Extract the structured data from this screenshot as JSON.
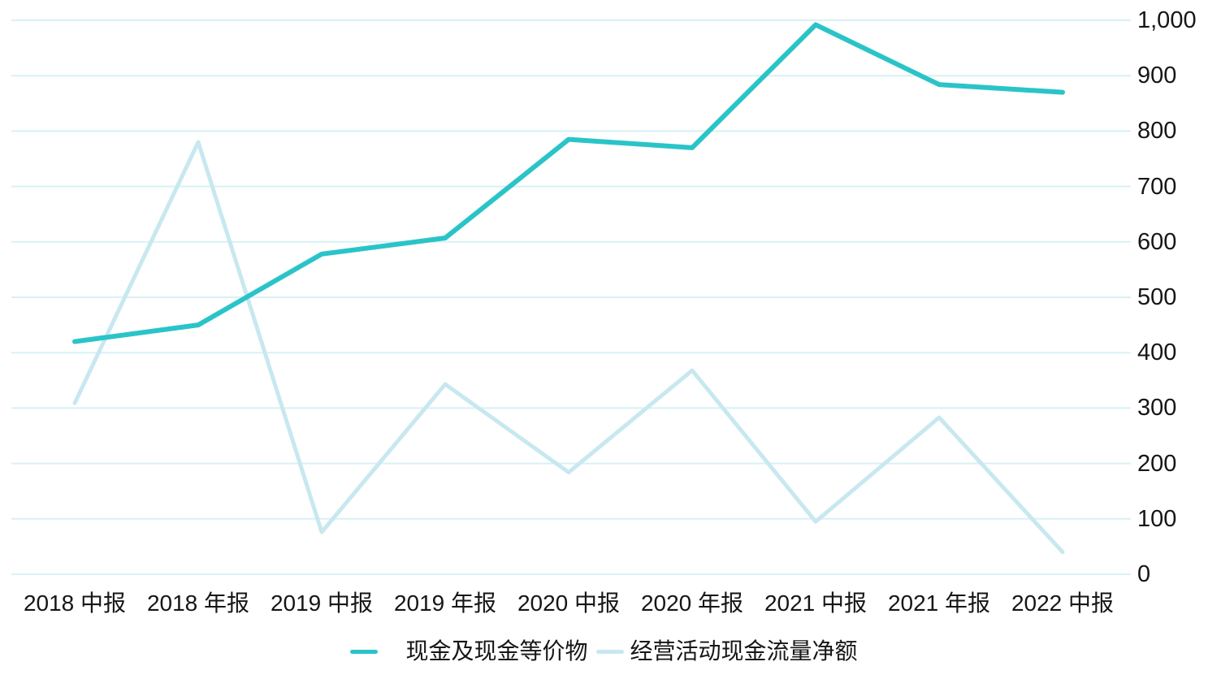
{
  "chart_data": {
    "type": "line",
    "categories": [
      "2018 中报",
      "2018 年报",
      "2019 中报",
      "2019 年报",
      "2020 中报",
      "2020 年报",
      "2021 中报",
      "2021 年报",
      "2022 中报"
    ],
    "series": [
      {
        "name": "现金及现金等价物",
        "color": "#2ac4c8",
        "values": [
          420,
          450,
          578,
          607,
          785,
          770,
          992,
          884,
          870
        ]
      },
      {
        "name": "经营活动现金流量净额",
        "color": "#c8e8f0",
        "values": [
          309,
          780,
          76,
          343,
          184,
          368,
          95,
          283,
          40
        ]
      }
    ],
    "title": "",
    "xlabel": "",
    "ylabel": "",
    "ylim": [
      0,
      1000
    ],
    "ytick_step": 100,
    "ytick_labels": [
      "0",
      "100",
      "200",
      "300",
      "400",
      "500",
      "600",
      "700",
      "800",
      "900",
      "1,000"
    ],
    "yaxis_side": "right",
    "grid": true,
    "gridline_color": "#d8f1f5",
    "legend_position": "bottom",
    "text_color": "#161616",
    "background_color": "#ffffff"
  }
}
